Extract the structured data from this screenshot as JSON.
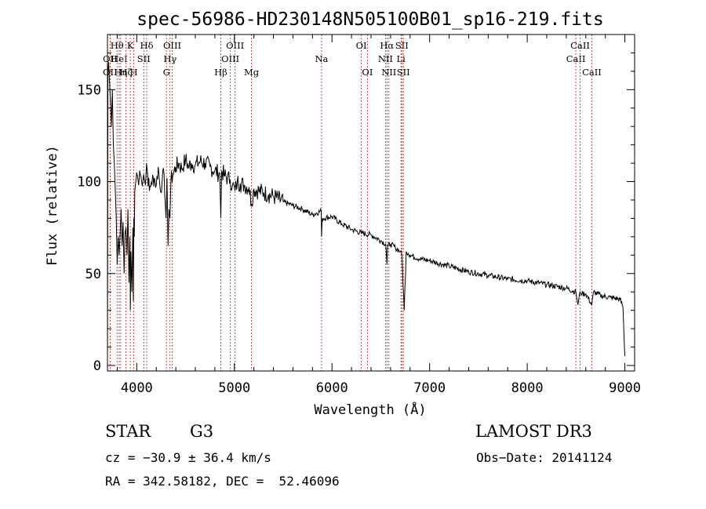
{
  "chart_data": {
    "type": "line",
    "title": "spec-56986-HD230148N505100B01_sp16-219.fits",
    "xlabel": "Wavelength (Å)",
    "ylabel": "Flux (relative)",
    "xlim": [
      3700,
      9100
    ],
    "ylim": [
      -3,
      180
    ],
    "xticks": [
      4000,
      5000,
      6000,
      7000,
      8000,
      9000
    ],
    "yticks": [
      0,
      50,
      100,
      150
    ],
    "series": [
      {
        "name": "flux",
        "x": [
          3700,
          3705,
          3712,
          3720,
          3730,
          3740,
          3750,
          3760,
          3770,
          3780,
          3790,
          3800,
          3810,
          3820,
          3830,
          3840,
          3850,
          3860,
          3870,
          3880,
          3890,
          3900,
          3910,
          3920,
          3930,
          3935,
          3940,
          3950,
          3960,
          3965,
          3970,
          3975,
          3980,
          3990,
          4000,
          4010,
          4020,
          4030,
          4050,
          4070,
          4090,
          4100,
          4110,
          4130,
          4150,
          4180,
          4200,
          4220,
          4240,
          4260,
          4280,
          4300,
          4310,
          4320,
          4330,
          4340,
          4350,
          4370,
          4400,
          4430,
          4460,
          4500,
          4530,
          4560,
          4600,
          4650,
          4700,
          4750,
          4800,
          4850,
          4861,
          4870,
          4900,
          4930,
          4957,
          4980,
          5007,
          5030,
          5060,
          5100,
          5150,
          5175,
          5200,
          5250,
          5300,
          5350,
          5400,
          5500,
          5600,
          5700,
          5800,
          5890,
          5893,
          5900,
          6000,
          6100,
          6200,
          6300,
          6400,
          6500,
          6550,
          6563,
          6570,
          6600,
          6650,
          6700,
          6716,
          6740,
          6760,
          6780,
          6800,
          6900,
          7000,
          7200,
          7400,
          7600,
          7800,
          8000,
          8200,
          8400,
          8498,
          8520,
          8542,
          8560,
          8600,
          8662,
          8680,
          8750,
          8850,
          8950,
          8980,
          9000
        ],
        "values": [
          0,
          160,
          165,
          155,
          145,
          130,
          150,
          120,
          110,
          95,
          80,
          55,
          70,
          60,
          72,
          85,
          65,
          78,
          50,
          72,
          75,
          60,
          85,
          45,
          70,
          30,
          62,
          40,
          75,
          35,
          80,
          70,
          95,
          100,
          105,
          102,
          98,
          106,
          100,
          104,
          98,
          110,
          105,
          95,
          100,
          102,
          98,
          108,
          96,
          100,
          104,
          80,
          102,
          65,
          85,
          80,
          100,
          104,
          108,
          110,
          107,
          112,
          108,
          110,
          109,
          111,
          110,
          108,
          106,
          104,
          80,
          106,
          103,
          102,
          101,
          98,
          95,
          100,
          99,
          98,
          97,
          88,
          96,
          95,
          94,
          93,
          92,
          89,
          87,
          85,
          82,
          84,
          70,
          80,
          81,
          77,
          74,
          72,
          71,
          68,
          66,
          55,
          65,
          66,
          64,
          62,
          60,
          30,
          62,
          61,
          60,
          58,
          57,
          54,
          51,
          49,
          47,
          46,
          44,
          42,
          40,
          33,
          40,
          39,
          39,
          33,
          40,
          38,
          37,
          36,
          32,
          5
        ]
      }
    ],
    "line_markers": [
      {
        "x": 3727,
        "label": "OII",
        "row": 2
      },
      {
        "x": 3727,
        "label": "OII",
        "row": 3
      },
      {
        "x": 3798,
        "label": "Hθ",
        "row": 1
      },
      {
        "x": 3820,
        "label": "HeI",
        "row": 2
      },
      {
        "x": 3835,
        "label": "Hη",
        "row": 3
      },
      {
        "x": 3889,
        "label": "Hζ",
        "row": 3
      },
      {
        "x": 3934,
        "label": "K",
        "row": 1
      },
      {
        "x": 3969,
        "label": "H",
        "row": 3
      },
      {
        "x": 4072,
        "label": "SII",
        "row": 2
      },
      {
        "x": 4102,
        "label": "Hδ",
        "row": 1
      },
      {
        "x": 4304,
        "label": "G",
        "row": 3
      },
      {
        "x": 4341,
        "label": "Hγ",
        "row": 2
      },
      {
        "x": 4363,
        "label": "OIII",
        "row": 1
      },
      {
        "x": 4861,
        "label": "Hβ",
        "row": 3
      },
      {
        "x": 4959,
        "label": "OIII",
        "row": 2
      },
      {
        "x": 5007,
        "label": "OIII",
        "row": 1
      },
      {
        "x": 5175,
        "label": "Mg",
        "row": 3
      },
      {
        "x": 5893,
        "label": "Na",
        "row": 2
      },
      {
        "x": 6300,
        "label": "OI",
        "row": 1
      },
      {
        "x": 6363,
        "label": "OI",
        "row": 3
      },
      {
        "x": 6548,
        "label": "NII",
        "row": 2
      },
      {
        "x": 6563,
        "label": "Hα",
        "row": 1
      },
      {
        "x": 6583,
        "label": "NII",
        "row": 3
      },
      {
        "x": 6707,
        "label": "Li",
        "row": 2
      },
      {
        "x": 6716,
        "label": "SII",
        "row": 1
      },
      {
        "x": 6731,
        "label": "SII",
        "row": 3
      },
      {
        "x": 8498,
        "label": "CaII",
        "row": 2
      },
      {
        "x": 8542,
        "label": "CaII",
        "row": 1
      },
      {
        "x": 8662,
        "label": "CaII",
        "row": 3
      }
    ]
  },
  "info": {
    "object_class": "STAR",
    "subclass": "G3",
    "survey": "LAMOST DR3",
    "cz": "cz = −30.9 ± 36.4 km/s",
    "obs_date": "Obs−Date: 20141124",
    "coords": "RA = 342.58182, DEC =  52.46096"
  }
}
